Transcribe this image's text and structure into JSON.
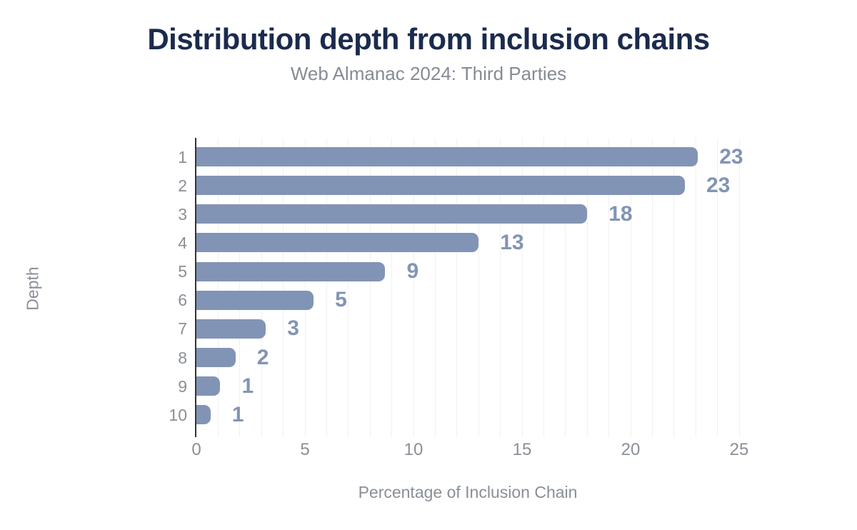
{
  "header": {
    "title": "Distribution depth from inclusion chains",
    "subtitle": "Web Almanac 2024: Third Parties"
  },
  "chart_data": {
    "type": "bar",
    "orientation": "horizontal",
    "title": "Distribution depth from inclusion chains",
    "subtitle": "Web Almanac 2024: Third Parties",
    "categories": [
      "1",
      "2",
      "3",
      "4",
      "5",
      "6",
      "7",
      "8",
      "9",
      "10"
    ],
    "values": [
      23.1,
      22.5,
      18.0,
      13.0,
      8.7,
      5.4,
      3.2,
      1.8,
      1.1,
      0.65
    ],
    "value_labels": [
      "23",
      "23",
      "18",
      "13",
      "9",
      "5",
      "3",
      "2",
      "1",
      "1"
    ],
    "xlabel": "Percentage of Inclusion Chain",
    "ylabel": "Depth",
    "xlim": [
      0,
      25
    ],
    "xticks": [
      0,
      5,
      10,
      15,
      20,
      25
    ],
    "grid": "faint vertical gridlines every 1 unit",
    "legend": "none",
    "colors": {
      "bar": "#8294b5",
      "value_label": "#8294b5",
      "title": "#1b2b4d",
      "subtitle": "#868b94",
      "axis_text": "#8a8f96",
      "axis_line": "#333333",
      "gridline": "#f1f1f3",
      "background": "#ffffff"
    }
  }
}
